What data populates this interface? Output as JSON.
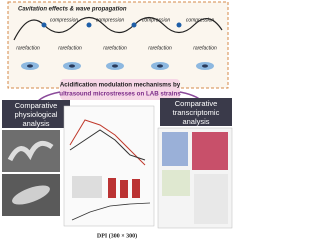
{
  "top_panel": {
    "title": "Cavitation effects & wave propagation",
    "compression_labels": [
      "compression",
      "compression",
      "compression",
      "compression"
    ],
    "rarefaction_labels": [
      "rarefaction",
      "rarefaction",
      "rarefaction",
      "rarefaction",
      "rarefaction"
    ]
  },
  "banner": {
    "line1": "Acidification modulation mechanisms by",
    "line2": "ultrasound microstresses on LAB strains"
  },
  "left_panel": {
    "title": "Comparative physiological analysis"
  },
  "right_panel": {
    "title": "Comparative transcriptomic analysis"
  },
  "footer": "DPI (300 × 300)"
}
